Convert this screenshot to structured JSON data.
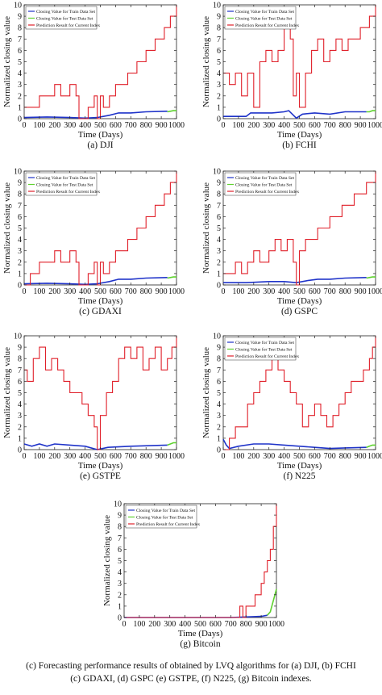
{
  "figure": {
    "caption_line1": "(c) Forecasting performance results of obtained by  LVQ algorithms for (a) DJI, (b) FCHI",
    "caption_line2": "(c) GDAXI, (d) GSPC (e) GSTPE, (f) N225, (g) Bitcoin indexes.",
    "colors": {
      "train": "#1f33c9",
      "test": "#5ed22e",
      "prediction": "#e0202a"
    }
  },
  "chart_data": [
    {
      "type": "line",
      "title": "(a) DJI",
      "xlabel": "Time (Days)",
      "ylabel": "Normalized closing value",
      "xlim": [
        0,
        1000
      ],
      "ylim": [
        0,
        10
      ],
      "xticks": [
        "0",
        "100",
        "200",
        "300",
        "400",
        "500",
        "600",
        "700",
        "800",
        "900",
        "1000"
      ],
      "yticks": [
        "0",
        "1",
        "2",
        "3",
        "4",
        "5",
        "6",
        "7",
        "8",
        "9",
        "10"
      ],
      "legend": [
        "Closing Value for Train Data Set",
        "Closing Value for Test Data Set",
        "Prediction Result for Current Index"
      ],
      "legend_position": "top-left",
      "series": [
        {
          "name": "Closing Value for Train Data Set",
          "x": [
            0,
            150,
            300,
            400,
            480,
            560,
            620,
            700,
            800,
            940
          ],
          "y": [
            0.1,
            0.15,
            0.1,
            0.05,
            0.1,
            0.3,
            0.5,
            0.5,
            0.6,
            0.65
          ]
        },
        {
          "name": "Closing Value for Test Data Set",
          "x": [
            940,
            960,
            980,
            1000
          ],
          "y": [
            0.6,
            0.65,
            0.7,
            0.7
          ]
        },
        {
          "name": "Prediction Result for Current Index",
          "x": [
            0,
            80,
            100,
            160,
            200,
            240,
            300,
            340,
            360,
            390,
            420,
            460,
            480,
            500,
            520,
            560,
            600,
            640,
            680,
            700,
            740,
            760,
            800,
            820,
            860,
            880,
            920,
            940,
            960,
            980,
            1000
          ],
          "y": [
            1,
            1,
            2,
            2,
            3,
            2,
            3,
            2,
            0,
            0,
            1,
            2,
            0,
            2,
            1,
            2,
            3,
            3,
            4,
            4,
            5,
            5,
            6,
            6,
            7,
            7,
            8,
            8,
            9,
            9,
            10
          ]
        }
      ]
    },
    {
      "type": "line",
      "title": "(b) FCHI",
      "xlabel": "Time (Days)",
      "ylabel": "Normalized closing value",
      "xlim": [
        0,
        1000
      ],
      "ylim": [
        0,
        10
      ],
      "xticks": [
        "0",
        "100",
        "200",
        "300",
        "400",
        "500",
        "600",
        "700",
        "800",
        "900",
        "1000"
      ],
      "yticks": [
        "0",
        "1",
        "2",
        "3",
        "4",
        "5",
        "6",
        "7",
        "8",
        "9",
        "10"
      ],
      "legend": [
        "Closing Value for Train Data Set",
        "Closing Value for Test Data Set",
        "Prediction Result for Current Index"
      ],
      "legend_position": "top-left",
      "series": [
        {
          "name": "Closing Value for Train Data Set",
          "x": [
            0,
            150,
            180,
            320,
            400,
            430,
            480,
            520,
            600,
            700,
            800,
            940
          ],
          "y": [
            0.2,
            0.2,
            0.5,
            0.5,
            0.6,
            0.7,
            0.05,
            0.4,
            0.5,
            0.4,
            0.6,
            0.6
          ]
        },
        {
          "name": "Closing Value for Test Data Set",
          "x": [
            940,
            960,
            980,
            1000
          ],
          "y": [
            0.6,
            0.6,
            0.7,
            0.7
          ]
        },
        {
          "name": "Prediction Result for Current Index",
          "x": [
            0,
            40,
            80,
            120,
            160,
            200,
            240,
            280,
            320,
            360,
            400,
            440,
            460,
            480,
            500,
            540,
            580,
            620,
            660,
            700,
            740,
            780,
            820,
            860,
            900,
            940,
            960,
            980,
            1000
          ],
          "y": [
            4,
            3,
            4,
            2,
            4,
            1,
            5,
            6,
            5,
            6,
            8,
            7,
            2,
            4,
            1,
            4,
            6,
            7,
            5,
            6,
            7,
            6,
            7,
            7,
            8,
            8,
            9,
            9,
            10
          ]
        }
      ]
    },
    {
      "type": "line",
      "title": "(c) GDAXI",
      "xlabel": "Time (Days)",
      "ylabel": "Normalized closing value",
      "xlim": [
        0,
        1000
      ],
      "ylim": [
        0,
        10
      ],
      "xticks": [
        "0",
        "100",
        "200",
        "300",
        "400",
        "500",
        "600",
        "700",
        "800",
        "900",
        "1000"
      ],
      "yticks": [
        "0",
        "1",
        "2",
        "3",
        "4",
        "5",
        "6",
        "7",
        "8",
        "9",
        "10"
      ],
      "legend": [
        "Closing Value for Train Data Set",
        "Closing Value for Test Data Set",
        "Prediction Result for Current Index"
      ],
      "legend_position": "top-left",
      "series": [
        {
          "name": "Closing Value for Train Data Set",
          "x": [
            0,
            150,
            300,
            400,
            480,
            560,
            620,
            700,
            800,
            940
          ],
          "y": [
            0.1,
            0.15,
            0.1,
            0.05,
            0.1,
            0.3,
            0.5,
            0.5,
            0.6,
            0.65
          ]
        },
        {
          "name": "Closing Value for Test Data Set",
          "x": [
            940,
            960,
            980,
            1000
          ],
          "y": [
            0.6,
            0.65,
            0.7,
            0.7
          ]
        },
        {
          "name": "Prediction Result for Current Index",
          "x": [
            0,
            40,
            80,
            100,
            160,
            200,
            240,
            300,
            340,
            360,
            390,
            420,
            460,
            480,
            500,
            520,
            560,
            600,
            640,
            680,
            700,
            740,
            760,
            800,
            820,
            860,
            880,
            920,
            940,
            960,
            980,
            1000
          ],
          "y": [
            0,
            1,
            1,
            2,
            2,
            3,
            2,
            3,
            2,
            0,
            0,
            1,
            2,
            0,
            2,
            1,
            2,
            3,
            3,
            4,
            4,
            5,
            5,
            6,
            6,
            7,
            7,
            8,
            8,
            9,
            9,
            10
          ]
        }
      ]
    },
    {
      "type": "line",
      "title": "(d) GSPC",
      "xlabel": "Time (Days)",
      "ylabel": "Normalized closing value",
      "xlim": [
        0,
        1000
      ],
      "ylim": [
        0,
        10
      ],
      "xticks": [
        "0",
        "100",
        "200",
        "300",
        "400",
        "500",
        "600",
        "700",
        "800",
        "900",
        "1000"
      ],
      "yticks": [
        "0",
        "1",
        "2",
        "3",
        "4",
        "5",
        "6",
        "7",
        "8",
        "9",
        "10"
      ],
      "legend": [
        "Closing Value for Train Data Set",
        "Closing Value for Test Data Set",
        "Prediction Result for Current Index"
      ],
      "legend_position": "top-left",
      "series": [
        {
          "name": "Closing Value for Train Data Set",
          "x": [
            0,
            150,
            300,
            400,
            480,
            560,
            620,
            700,
            800,
            940
          ],
          "y": [
            0.2,
            0.2,
            0.3,
            0.3,
            0.2,
            0.4,
            0.5,
            0.5,
            0.6,
            0.65
          ]
        },
        {
          "name": "Closing Value for Test Data Set",
          "x": [
            940,
            960,
            980,
            1000
          ],
          "y": [
            0.6,
            0.65,
            0.7,
            0.7
          ]
        },
        {
          "name": "Prediction Result for Current Index",
          "x": [
            0,
            40,
            80,
            120,
            160,
            200,
            240,
            300,
            340,
            380,
            420,
            460,
            480,
            500,
            540,
            580,
            620,
            660,
            700,
            740,
            780,
            820,
            860,
            900,
            940,
            960,
            980,
            1000
          ],
          "y": [
            1,
            1,
            2,
            1,
            2,
            3,
            2,
            3,
            4,
            3,
            4,
            2,
            0,
            3,
            4,
            4,
            5,
            5,
            6,
            6,
            7,
            7,
            8,
            8,
            9,
            9,
            9,
            10
          ]
        }
      ]
    },
    {
      "type": "line",
      "title": "(e) GSTPE",
      "xlabel": "Time (Days)",
      "ylabel": "Normalized closing value",
      "xlim": [
        0,
        1000
      ],
      "ylim": [
        0,
        10
      ],
      "xticks": [
        "0",
        "100",
        "200",
        "300",
        "400",
        "500",
        "600",
        "700",
        "800",
        "900",
        "1000"
      ],
      "yticks": [
        "0",
        "1",
        "2",
        "3",
        "4",
        "5",
        "6",
        "7",
        "8",
        "9",
        "10"
      ],
      "legend": [],
      "legend_position": "",
      "series": [
        {
          "name": "Closing Value for Train Data Set",
          "x": [
            0,
            50,
            100,
            150,
            200,
            300,
            400,
            480,
            550,
            700,
            940
          ],
          "y": [
            0.5,
            0.3,
            0.5,
            0.3,
            0.5,
            0.4,
            0.3,
            0.0,
            0.2,
            0.3,
            0.4
          ]
        },
        {
          "name": "Closing Value for Test Data Set",
          "x": [
            940,
            960,
            980,
            1000
          ],
          "y": [
            0.4,
            0.5,
            0.6,
            0.6
          ]
        },
        {
          "name": "Prediction Result for Current Index",
          "x": [
            0,
            20,
            60,
            100,
            140,
            180,
            220,
            260,
            300,
            340,
            380,
            420,
            460,
            480,
            500,
            540,
            580,
            620,
            660,
            700,
            740,
            780,
            820,
            860,
            900,
            940,
            970,
            1000
          ],
          "y": [
            7,
            6,
            8,
            9,
            7,
            8,
            7,
            6,
            5,
            5,
            4,
            3,
            2,
            0,
            3,
            5,
            6,
            8,
            9,
            8,
            9,
            7,
            8,
            9,
            7,
            8,
            9,
            10
          ]
        }
      ]
    },
    {
      "type": "line",
      "title": "(f) N225",
      "xlabel": "Time (Days)",
      "ylabel": "Normalized closing value",
      "xlim": [
        0,
        1000
      ],
      "ylim": [
        0,
        10
      ],
      "xticks": [
        "0",
        "100",
        "200",
        "300",
        "400",
        "500",
        "600",
        "700",
        "800",
        "900",
        "1000"
      ],
      "yticks": [
        "0",
        "1",
        "2",
        "3",
        "4",
        "5",
        "6",
        "7",
        "8",
        "9",
        "10"
      ],
      "legend": [
        "Closing Value for Train Data Set",
        "Closing Value for Test Data Set",
        "Prediction Result for Current Index"
      ],
      "legend_position": "top-left",
      "series": [
        {
          "name": "Closing Value for Train Data Set",
          "x": [
            0,
            20,
            40,
            100,
            200,
            300,
            400,
            500,
            600,
            700,
            800,
            940
          ],
          "y": [
            0.9,
            0.4,
            0.1,
            0.3,
            0.5,
            0.5,
            0.4,
            0.3,
            0.2,
            0.1,
            0.15,
            0.2
          ]
        },
        {
          "name": "Closing Value for Test Data Set",
          "x": [
            940,
            960,
            980,
            1000
          ],
          "y": [
            0.2,
            0.3,
            0.4,
            0.4
          ]
        },
        {
          "name": "Prediction Result for Current Index",
          "x": [
            0,
            40,
            80,
            120,
            160,
            200,
            240,
            280,
            320,
            360,
            400,
            440,
            480,
            520,
            560,
            600,
            640,
            680,
            720,
            760,
            800,
            840,
            880,
            920,
            960,
            980,
            1000
          ],
          "y": [
            0,
            1,
            2,
            2,
            4,
            5,
            6,
            7,
            8,
            7,
            6,
            5,
            4,
            2,
            3,
            4,
            3,
            2,
            3,
            4,
            5,
            6,
            6,
            7,
            8,
            9,
            10
          ]
        }
      ]
    },
    {
      "type": "line",
      "title": "(g) Bitcoin",
      "xlabel": "Time (Days)",
      "ylabel": "Normalized closing value",
      "xlim": [
        0,
        1000
      ],
      "ylim": [
        0,
        10
      ],
      "xticks": [
        "0",
        "100",
        "200",
        "300",
        "400",
        "500",
        "600",
        "700",
        "800",
        "900",
        "1000"
      ],
      "yticks": [
        "0",
        "1",
        "2",
        "3",
        "4",
        "5",
        "6",
        "7",
        "8",
        "9",
        "10"
      ],
      "legend": [
        "Closing Value for Train Data Set",
        "Closing Value for Test Data Set",
        "Prediction Result for Current Index"
      ],
      "legend_position": "top-left",
      "series": [
        {
          "name": "Closing Value for Train Data Set",
          "x": [
            0,
            700,
            800,
            900,
            940
          ],
          "y": [
            0,
            0,
            0.05,
            0.1,
            0.2
          ]
        },
        {
          "name": "Closing Value for Test Data Set",
          "x": [
            940,
            960,
            980,
            1000
          ],
          "y": [
            0.2,
            0.5,
            1.5,
            2.5
          ]
        },
        {
          "name": "Prediction Result for Current Index",
          "x": [
            0,
            740,
            760,
            780,
            800,
            830,
            860,
            880,
            900,
            920,
            940,
            960,
            980,
            1000
          ],
          "y": [
            0,
            0,
            1,
            0,
            1,
            1,
            2,
            2,
            3,
            4,
            5,
            6,
            8,
            10
          ]
        }
      ]
    }
  ]
}
